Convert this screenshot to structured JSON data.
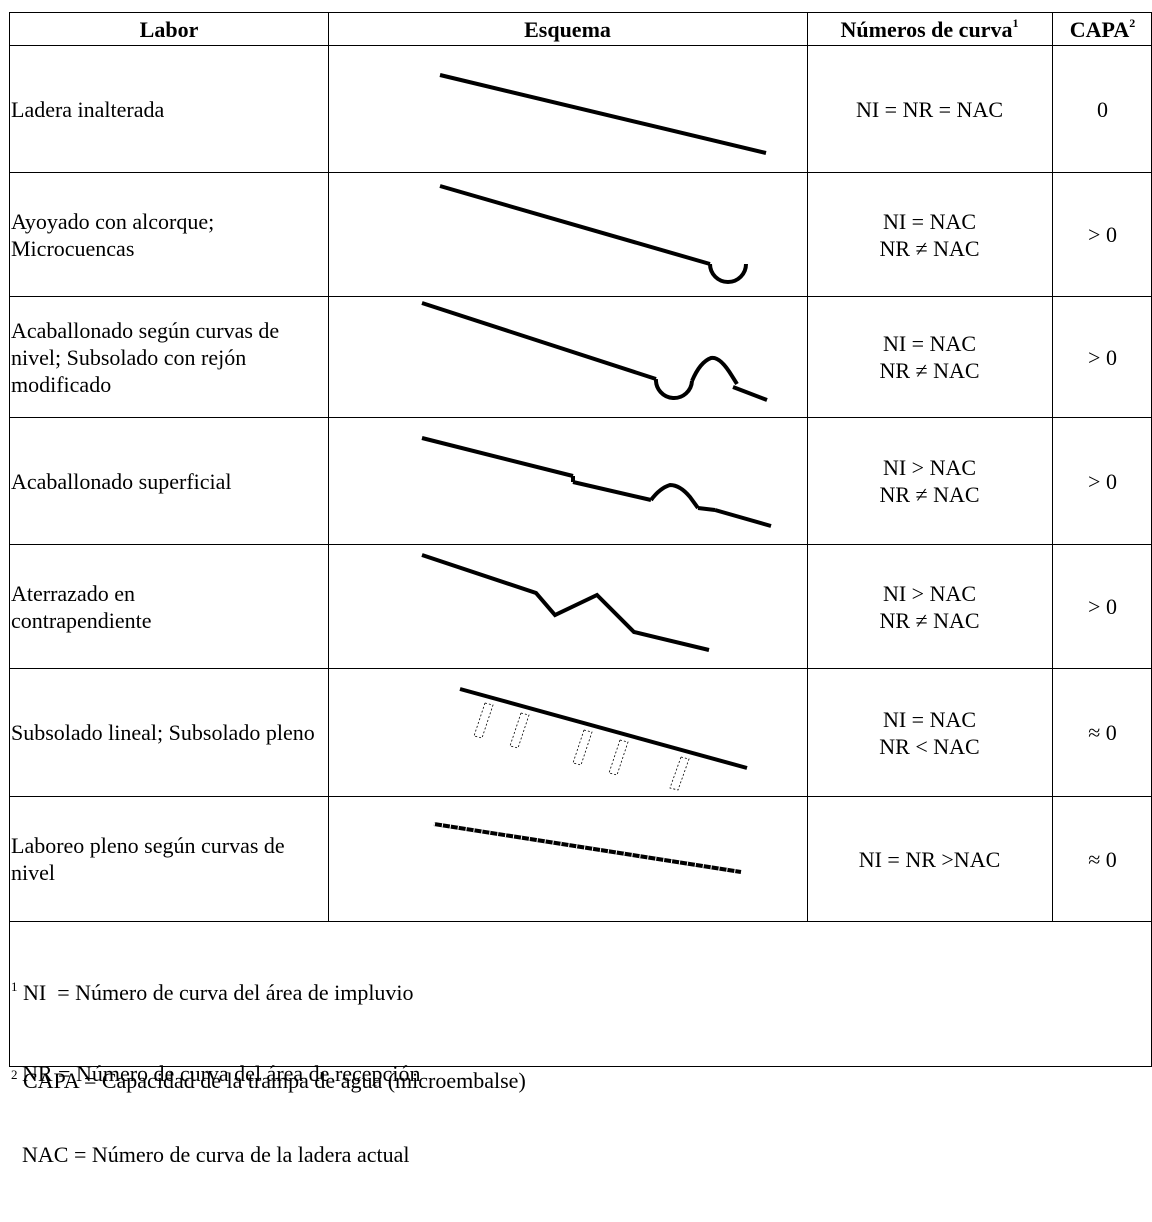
{
  "header": {
    "labor": "Labor",
    "esquema": "Esquema",
    "numeros": "Números de curva",
    "numeros_sup": "1",
    "capa": "CAPA",
    "capa_sup": "2"
  },
  "rows": [
    {
      "labor": "Ladera inalterada",
      "numeros": [
        "NI = NR = NAC"
      ],
      "capa": "0",
      "schema_icon": "straight-slope-icon"
    },
    {
      "labor": "Ayoyado con alcorque; Microcuencas",
      "numeros": [
        "NI = NAC",
        "NR ≠ NAC"
      ],
      "capa": "> 0",
      "schema_icon": "slope-with-pit-icon"
    },
    {
      "labor": "Acaballonado según curvas de nivel; Subsolado con rejón modificado",
      "numeros": [
        "NI = NAC",
        "NR ≠ NAC"
      ],
      "capa": "> 0",
      "schema_icon": "slope-with-pit-and-ridge-icon"
    },
    {
      "labor": "Acaballonado superficial",
      "numeros": [
        "NI > NAC",
        "NR ≠ NAC"
      ],
      "capa": "> 0",
      "schema_icon": "stepped-slope-with-ridge-icon"
    },
    {
      "labor": "Aterrazado en contrapendiente",
      "numeros": [
        "NI > NAC",
        "NR ≠ NAC"
      ],
      "capa": "> 0",
      "schema_icon": "reverse-slope-terrace-icon"
    },
    {
      "labor": "Subsolado lineal; Subsolado pleno",
      "numeros": [
        "NI = NAC",
        "NR < NAC"
      ],
      "capa": "≈ 0",
      "schema_icon": "subsoiled-slope-icon"
    },
    {
      "labor": "Laboreo pleno según curvas de nivel",
      "numeros": [
        "NI = NR >NAC"
      ],
      "capa": "≈ 0",
      "schema_icon": "tilled-slope-icon"
    }
  ],
  "footnotes": {
    "n1_mark": "1",
    "n1_lines": [
      " NI  = Número de curva del área de impluvio",
      "  NR = Número de curva del área de recepción",
      "  NAC = Número de curva de la ladera actual"
    ],
    "n2_mark": "2",
    "n2_text": " CAPA = Capacidad de la trampa de agua (microembalse)"
  }
}
